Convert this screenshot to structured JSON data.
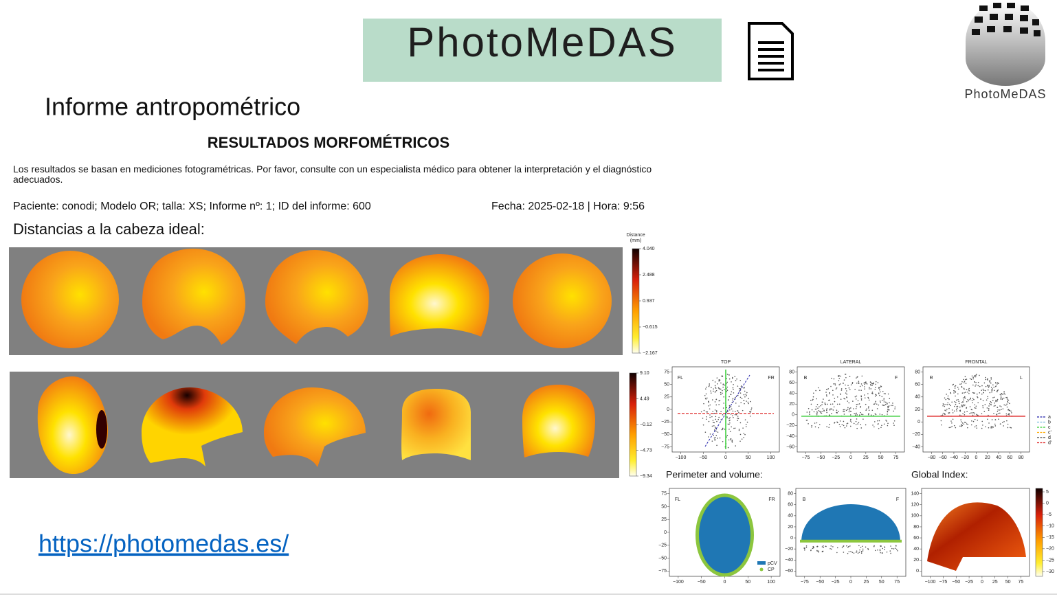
{
  "logo": "PhotoMeDAS",
  "corner_logo": "PhotoMeDAS",
  "heading": "Informe antropométrico",
  "report": {
    "title": "RESULTADOS MORFOMÉTRICOS",
    "disclaimer": "Los resultados se basan en mediciones fotogramétricas. Por favor, consulte con un especialista médico para obtener la interpretación y el diagnóstico adecuados.",
    "patient": "Paciente: conodi; Modelo  OR; talla: XS; Informe nº: 1; ID del informe: 600",
    "date": "Fecha:  2025-02-18 | Hora: 9:56",
    "section": "Distancias a la cabeza ideal:"
  },
  "colorbar1": {
    "title": [
      "Distance",
      "(mm)"
    ],
    "ticks": [
      "4.040",
      "2.488",
      "0.937",
      "−0.615",
      "−2.167"
    ]
  },
  "colorbar2": {
    "ticks": [
      "9.10",
      "4.49",
      "−0.12",
      "−4.73",
      "−9.34"
    ]
  },
  "plots": {
    "top": {
      "title": "TOP",
      "labels": [
        "FL",
        "FR"
      ],
      "xticks": [
        "−100",
        "−50",
        "0",
        "50",
        "100"
      ],
      "yticks": [
        "−75",
        "−50",
        "−25",
        "0",
        "25",
        "50",
        "75"
      ]
    },
    "lateral": {
      "title": "LATERAL",
      "labels": [
        "B",
        "F"
      ],
      "xticks": [
        "−75",
        "−50",
        "−25",
        "0",
        "25",
        "50",
        "75"
      ],
      "yticks": [
        "−60",
        "−40",
        "−20",
        "0",
        "20",
        "40",
        "60",
        "80"
      ]
    },
    "frontal": {
      "title": "FRONTAL",
      "labels": [
        "R",
        "L"
      ],
      "xticks": [
        "−80",
        "−60",
        "−40",
        "−20",
        "0",
        "20",
        "40",
        "60",
        "80"
      ],
      "yticks": [
        "−40",
        "−20",
        "0",
        "20",
        "40",
        "60",
        "80"
      ]
    },
    "perim_top": {
      "labels": [
        "FL",
        "FR"
      ],
      "xticks": [
        "−100",
        "−50",
        "0",
        "50",
        "100"
      ],
      "yticks": [
        "−75",
        "−50",
        "−25",
        "0",
        "25",
        "50",
        "75"
      ]
    },
    "perim_lat": {
      "labels": [
        "B",
        "F"
      ],
      "xticks": [
        "−75",
        "−50",
        "−25",
        "0",
        "25",
        "50",
        "75"
      ],
      "yticks": [
        "−60",
        "−40",
        "−20",
        "0",
        "20",
        "40",
        "60",
        "80"
      ]
    },
    "global": {
      "xticks": [
        "−100",
        "−75",
        "−50",
        "−25",
        "0",
        "25",
        "50",
        "75"
      ],
      "yticks": [
        "0",
        "20",
        "40",
        "60",
        "80",
        "100",
        "120",
        "140"
      ]
    }
  },
  "axis_legend": [
    "a",
    "b",
    "c",
    "c'",
    "d",
    "d'"
  ],
  "perim_legend": [
    "pCV",
    "CP"
  ],
  "perimeter_label": "Perimeter and volume:",
  "global_label": "Global Index:",
  "colorbar3": {
    "ticks": [
      "5",
      "0",
      "−5",
      "−10",
      "−15",
      "−20",
      "−25",
      "−30"
    ]
  },
  "url": "https://photomedas.es/"
}
